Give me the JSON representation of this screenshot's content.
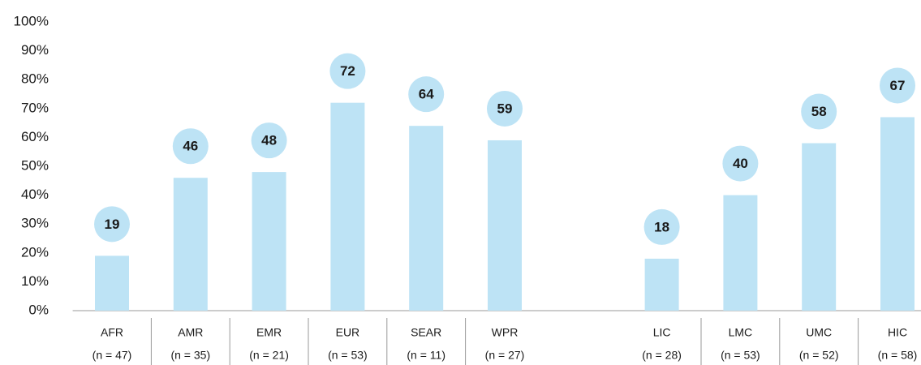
{
  "chart_data": {
    "type": "bar",
    "categories": [
      "AFR",
      "AMR",
      "EMR",
      "EUR",
      "SEAR",
      "WPR",
      null,
      "LIC",
      "LMC",
      "UMC",
      "HIC"
    ],
    "sublabels": [
      "(n = 47)",
      "(n = 35)",
      "(n = 21)",
      "(n = 53)",
      "(n = 11)",
      "(n = 27)",
      null,
      "(n = 28)",
      "(n = 53)",
      "(n = 52)",
      "(n = 58)"
    ],
    "values": [
      19,
      46,
      48,
      72,
      64,
      59,
      null,
      18,
      40,
      58,
      67
    ],
    "color": "#bde3f5",
    "ylim": [
      0,
      100
    ],
    "yticks": [
      {
        "value": 0,
        "label": "0%"
      },
      {
        "value": 10,
        "label": "10%"
      },
      {
        "value": 20,
        "label": "20%"
      },
      {
        "value": 30,
        "label": "30%"
      },
      {
        "value": 40,
        "label": "40%"
      },
      {
        "value": 50,
        "label": "50%"
      },
      {
        "value": 60,
        "label": "60%"
      },
      {
        "value": 70,
        "label": "70%"
      },
      {
        "value": 80,
        "label": "80%"
      },
      {
        "value": 90,
        "label": "90%"
      },
      {
        "value": 100,
        "label": "100%"
      }
    ]
  }
}
